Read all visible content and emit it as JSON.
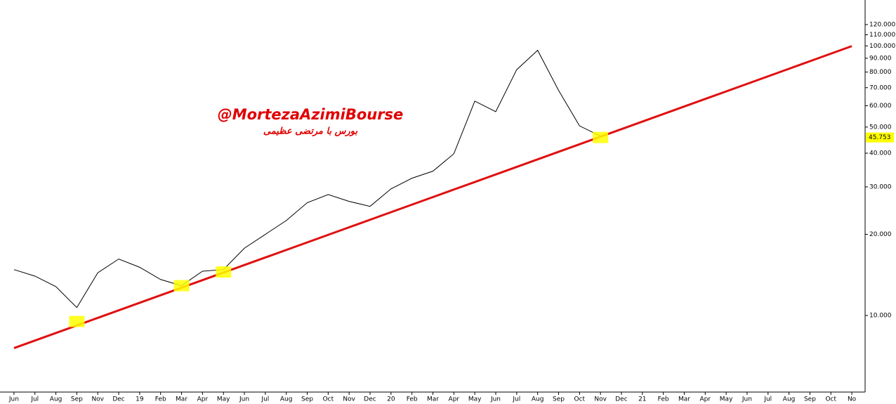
{
  "chart_data": {
    "type": "line",
    "annotations": [
      "@MortezaAzimiBourse",
      "بورس با مرتضی عظیمی"
    ],
    "categories": [
      "Jun",
      "Jul",
      "Aug",
      "Sep",
      "Nov",
      "Dec",
      "19",
      "Feb",
      "Mar",
      "Apr",
      "May",
      "Jun",
      "Jul",
      "Aug",
      "Sep",
      "Oct",
      "Nov",
      "Dec",
      "20",
      "Feb",
      "Mar",
      "Apr",
      "May",
      "Jun",
      "Jul",
      "Aug",
      "Sep",
      "Oct",
      "Nov",
      "Dec",
      "21",
      "Feb",
      "Mar",
      "Apr",
      "May",
      "Jun",
      "Jul",
      "Aug",
      "Sep",
      "Oct",
      "No"
    ],
    "series": [
      {
        "color": "#000000",
        "values": [
          14800,
          14000,
          12800,
          10700,
          14400,
          16200,
          15100,
          13600,
          12900,
          14600,
          14800,
          17770,
          20000,
          22500,
          26200,
          28100,
          26500,
          25400,
          29500,
          32300,
          34300,
          39800,
          62400,
          57000,
          81600,
          96300,
          68400,
          50500,
          46300,
          null,
          null,
          null,
          null,
          null,
          null,
          null,
          null,
          null,
          null,
          null,
          null
        ]
      },
      {
        "color": "#e01010",
        "values": [
          7570,
          8074,
          8612,
          9186,
          9798,
          10450,
          11146,
          11888,
          12680,
          13525,
          14426,
          15387,
          16412,
          17505,
          18671,
          19914,
          21240,
          22655,
          24164,
          25773,
          27490,
          29321,
          31273,
          33356,
          35578,
          37947,
          40475,
          43170,
          46046,
          49112,
          52383,
          55872,
          59593,
          63562,
          67795,
          72310,
          77126,
          82263,
          87741,
          93585,
          99818
        ]
      },
      {
        "color": "#ffff00",
        "marker": "box",
        "values": [
          null,
          null,
          null,
          9500,
          null,
          null,
          null,
          null,
          12900,
          null,
          14500,
          null,
          null,
          null,
          null,
          null,
          null,
          null,
          null,
          null,
          null,
          null,
          null,
          null,
          null,
          null,
          null,
          null,
          45753,
          null,
          null,
          null,
          null,
          null,
          null,
          null,
          null,
          null,
          null,
          null,
          null
        ]
      }
    ],
    "last_value": {
      "value": 45753,
      "label": "45.753"
    },
    "log_scale": true,
    "ylim": [
      5200,
      148000
    ],
    "yticks": [
      {
        "value": 10000,
        "label": "10.000"
      },
      {
        "value": 20000,
        "label": "20.000"
      },
      {
        "value": 30000,
        "label": "30.000"
      },
      {
        "value": 40000,
        "label": "40.000"
      },
      {
        "value": 50000,
        "label": "50.000"
      },
      {
        "value": 60000,
        "label": "60.000"
      },
      {
        "value": 70000,
        "label": "70.000"
      },
      {
        "value": 80000,
        "label": "80.000"
      },
      {
        "value": 90000,
        "label": "90.000"
      },
      {
        "value": 100000,
        "label": "100.000"
      },
      {
        "value": 110000,
        "label": "110.000"
      },
      {
        "value": 120000,
        "label": "120.000"
      }
    ]
  }
}
